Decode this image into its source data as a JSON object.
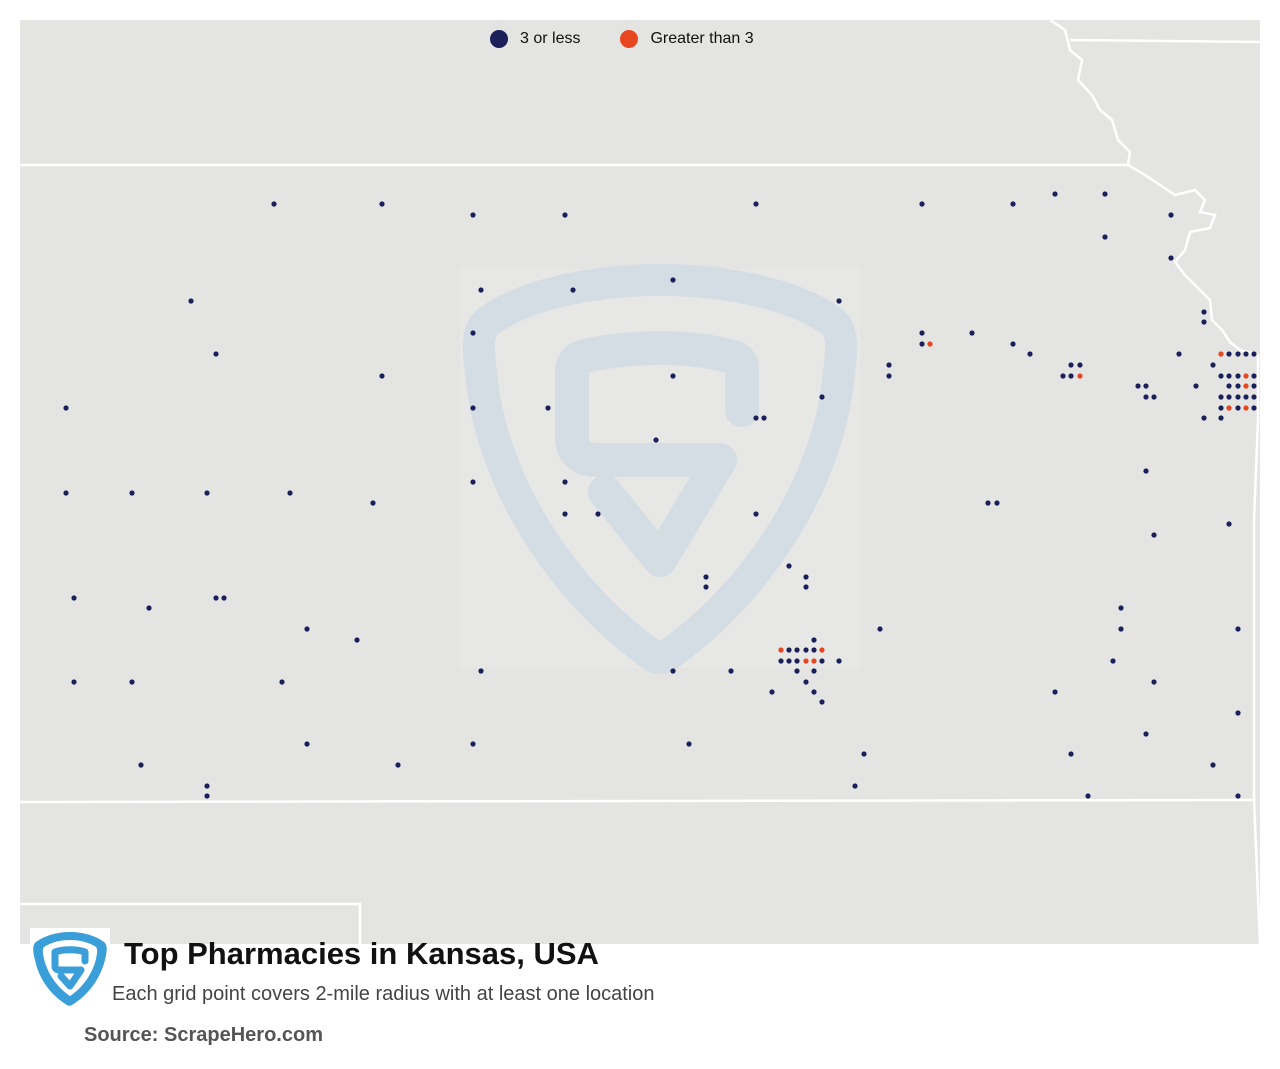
{
  "legend": {
    "low": {
      "label": "3 or less",
      "color": "#1b1f5a"
    },
    "high": {
      "label": "Greater than 3",
      "color": "#e8461f"
    }
  },
  "footer": {
    "title": "Top Pharmacies in Kansas, USA",
    "subtitle": "Each grid point covers 2-mile radius with at least one location",
    "source": "Source: ScrapeHero.com"
  },
  "colors": {
    "land": "#e4e4e2",
    "border": "#ffffff",
    "watermark": "#d4dde4",
    "logo_blue": "#3a9fd8"
  },
  "logo_icon": "scrapehero-shield-s-icon",
  "points_low": [
    [
      274,
      204
    ],
    [
      382,
      204
    ],
    [
      473,
      215
    ],
    [
      565,
      215
    ],
    [
      756,
      204
    ],
    [
      922,
      204
    ],
    [
      1013,
      204
    ],
    [
      1055,
      194
    ],
    [
      1105,
      194
    ],
    [
      1171,
      215
    ],
    [
      1105,
      237
    ],
    [
      1171,
      258
    ],
    [
      191,
      301
    ],
    [
      481,
      290
    ],
    [
      573,
      290
    ],
    [
      673,
      280
    ],
    [
      839,
      301
    ],
    [
      1204,
      312
    ],
    [
      1204,
      322
    ],
    [
      216,
      354
    ],
    [
      473,
      333
    ],
    [
      922,
      333
    ],
    [
      972,
      333
    ],
    [
      1013,
      344
    ],
    [
      1030,
      354
    ],
    [
      922,
      344
    ],
    [
      889,
      365
    ],
    [
      889,
      376
    ],
    [
      1063,
      376
    ],
    [
      1071,
      376
    ],
    [
      1071,
      365
    ],
    [
      1080,
      365
    ],
    [
      382,
      376
    ],
    [
      673,
      376
    ],
    [
      1179,
      354
    ],
    [
      1213,
      365
    ],
    [
      1229,
      354
    ],
    [
      1238,
      354
    ],
    [
      1246,
      354
    ],
    [
      1254,
      354
    ],
    [
      66,
      408
    ],
    [
      473,
      408
    ],
    [
      548,
      408
    ],
    [
      822,
      397
    ],
    [
      756,
      418
    ],
    [
      764,
      418
    ],
    [
      1138,
      386
    ],
    [
      1146,
      386
    ],
    [
      1146,
      397
    ],
    [
      1154,
      397
    ],
    [
      1196,
      386
    ],
    [
      1204,
      418
    ],
    [
      1221,
      418
    ],
    [
      1221,
      376
    ],
    [
      1229,
      376
    ],
    [
      1238,
      376
    ],
    [
      1254,
      376
    ],
    [
      1229,
      386
    ],
    [
      1238,
      386
    ],
    [
      1254,
      386
    ],
    [
      1221,
      397
    ],
    [
      1229,
      397
    ],
    [
      1238,
      397
    ],
    [
      1246,
      397
    ],
    [
      1254,
      397
    ],
    [
      1221,
      408
    ],
    [
      1238,
      408
    ],
    [
      1254,
      408
    ],
    [
      656,
      440
    ],
    [
      66,
      493
    ],
    [
      132,
      493
    ],
    [
      207,
      493
    ],
    [
      290,
      493
    ],
    [
      373,
      503
    ],
    [
      473,
      482
    ],
    [
      565,
      482
    ],
    [
      565,
      514
    ],
    [
      598,
      514
    ],
    [
      756,
      514
    ],
    [
      988,
      503
    ],
    [
      997,
      503
    ],
    [
      1146,
      471
    ],
    [
      1229,
      524
    ],
    [
      1154,
      535
    ],
    [
      789,
      566
    ],
    [
      806,
      577
    ],
    [
      706,
      577
    ],
    [
      706,
      587
    ],
    [
      806,
      587
    ],
    [
      74,
      598
    ],
    [
      149,
      608
    ],
    [
      216,
      598
    ],
    [
      224,
      598
    ],
    [
      307,
      629
    ],
    [
      357,
      640
    ],
    [
      880,
      629
    ],
    [
      1121,
      608
    ],
    [
      1121,
      629
    ],
    [
      1238,
      629
    ],
    [
      814,
      640
    ],
    [
      789,
      650
    ],
    [
      797,
      650
    ],
    [
      806,
      650
    ],
    [
      814,
      650
    ],
    [
      781,
      661
    ],
    [
      789,
      661
    ],
    [
      797,
      661
    ],
    [
      822,
      661
    ],
    [
      839,
      661
    ],
    [
      797,
      671
    ],
    [
      814,
      671
    ],
    [
      806,
      682
    ],
    [
      814,
      692
    ],
    [
      822,
      702
    ],
    [
      772,
      692
    ],
    [
      74,
      682
    ],
    [
      132,
      682
    ],
    [
      282,
      682
    ],
    [
      481,
      671
    ],
    [
      673,
      671
    ],
    [
      731,
      671
    ],
    [
      1113,
      661
    ],
    [
      1154,
      682
    ],
    [
      1055,
      692
    ],
    [
      1238,
      713
    ],
    [
      1146,
      734
    ],
    [
      307,
      744
    ],
    [
      473,
      744
    ],
    [
      689,
      744
    ],
    [
      864,
      754
    ],
    [
      1071,
      754
    ],
    [
      141,
      765
    ],
    [
      398,
      765
    ],
    [
      1213,
      765
    ],
    [
      207,
      786
    ],
    [
      207,
      796
    ],
    [
      855,
      786
    ],
    [
      1088,
      796
    ],
    [
      1238,
      796
    ]
  ],
  "points_high": [
    [
      930,
      344
    ],
    [
      1080,
      376
    ],
    [
      1221,
      354
    ],
    [
      1246,
      376
    ],
    [
      1246,
      386
    ],
    [
      1229,
      408
    ],
    [
      1246,
      408
    ],
    [
      781,
      650
    ],
    [
      822,
      650
    ],
    [
      806,
      661
    ],
    [
      814,
      661
    ]
  ]
}
